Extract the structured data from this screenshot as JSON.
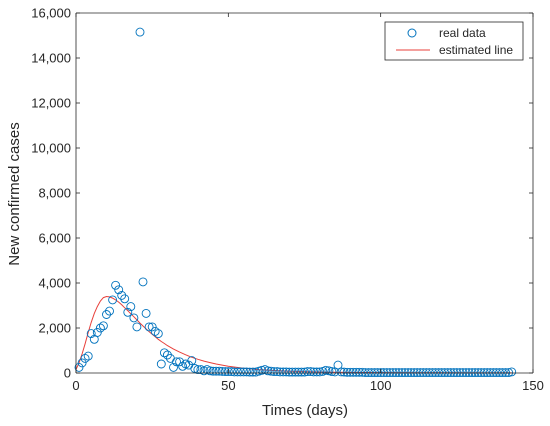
{
  "chart_data": {
    "type": "scatter",
    "xlabel": "Times (days)",
    "ylabel": "New confirmed cases",
    "xlim": [
      0,
      150
    ],
    "ylim": [
      0,
      16000
    ],
    "x_ticks": [
      0,
      50,
      100,
      150
    ],
    "y_ticks": [
      0,
      2000,
      4000,
      6000,
      8000,
      10000,
      12000,
      14000,
      16000
    ],
    "x_tick_labels": [
      "0",
      "50",
      "100",
      "150"
    ],
    "y_tick_labels": [
      "0",
      "2,000",
      "4,000",
      "6,000",
      "8,000",
      "10,000",
      "12,000",
      "14,000",
      "16,000"
    ],
    "grid": false,
    "legend_position": "top-right",
    "series": [
      {
        "name": "real data",
        "kind": "markers",
        "marker": "circle",
        "color": "#0072BD",
        "x": [
          1,
          2,
          3,
          4,
          5,
          6,
          7,
          8,
          9,
          10,
          11,
          12,
          13,
          14,
          15,
          16,
          17,
          18,
          19,
          20,
          21,
          22,
          23,
          24,
          25,
          26,
          27,
          28,
          29,
          30,
          31,
          32,
          33,
          34,
          35,
          36,
          37,
          38,
          39,
          40,
          41,
          42,
          43,
          44,
          45,
          46,
          47,
          48,
          49,
          50,
          51,
          52,
          53,
          54,
          55,
          56,
          57,
          58,
          59,
          60,
          61,
          62,
          63,
          64,
          65,
          66,
          67,
          68,
          69,
          70,
          71,
          72,
          73,
          74,
          75,
          76,
          77,
          78,
          79,
          80,
          81,
          82,
          83,
          84,
          85,
          86,
          87,
          88,
          89,
          90,
          91,
          92,
          93,
          94,
          95,
          96,
          97,
          98,
          99,
          100,
          101,
          102,
          103,
          104,
          105,
          106,
          107,
          108,
          109,
          110,
          111,
          112,
          113,
          114,
          115,
          116,
          117,
          118,
          119,
          120,
          121,
          122,
          123,
          124,
          125,
          126,
          127,
          128,
          129,
          130,
          131,
          132,
          133,
          134,
          135,
          136,
          137,
          138,
          139,
          140,
          141,
          142,
          143
        ],
        "y": [
          250,
          450,
          650,
          750,
          1750,
          1500,
          1800,
          2000,
          2100,
          2600,
          2750,
          3250,
          3900,
          3700,
          3450,
          3300,
          2700,
          2950,
          2450,
          2050,
          15150,
          4050,
          2650,
          2050,
          2050,
          1850,
          1750,
          400,
          900,
          800,
          650,
          250,
          500,
          500,
          300,
          400,
          350,
          550,
          200,
          150,
          150,
          100,
          150,
          100,
          80,
          80,
          80,
          70,
          60,
          60,
          60,
          50,
          50,
          50,
          50,
          50,
          40,
          40,
          40,
          80,
          120,
          150,
          100,
          80,
          60,
          60,
          50,
          50,
          50,
          40,
          40,
          40,
          40,
          40,
          40,
          60,
          60,
          50,
          50,
          50,
          70,
          120,
          100,
          60,
          50,
          350,
          50,
          40,
          30,
          30,
          30,
          30,
          30,
          30,
          20,
          20,
          20,
          20,
          20,
          20,
          20,
          20,
          20,
          20,
          20,
          20,
          20,
          20,
          20,
          20,
          20,
          20,
          20,
          20,
          20,
          20,
          20,
          20,
          20,
          20,
          20,
          20,
          20,
          20,
          20,
          20,
          20,
          20,
          20,
          20,
          20,
          20,
          20,
          20,
          20,
          20,
          20,
          20,
          20,
          20,
          20,
          20,
          50
        ]
      },
      {
        "name": "estimated line",
        "kind": "line",
        "color": "#E8403B",
        "x": [
          0,
          1,
          2,
          3,
          4,
          5,
          6,
          7,
          8,
          9,
          10,
          11,
          12,
          13,
          14,
          15,
          16,
          17,
          18,
          19,
          20,
          21,
          22,
          23,
          24,
          25,
          26,
          27,
          28,
          29,
          30,
          32,
          34,
          36,
          38,
          40,
          42,
          44,
          46,
          48,
          50,
          55,
          60,
          65,
          70,
          75,
          80,
          85,
          90,
          95,
          100,
          110,
          120,
          130,
          143
        ],
        "y": [
          150,
          450,
          850,
          1300,
          1800,
          2250,
          2650,
          2950,
          3200,
          3350,
          3400,
          3380,
          3330,
          3250,
          3150,
          3030,
          2900,
          2770,
          2630,
          2500,
          2360,
          2220,
          2090,
          1960,
          1840,
          1720,
          1610,
          1500,
          1400,
          1310,
          1220,
          1060,
          930,
          810,
          700,
          610,
          530,
          460,
          400,
          350,
          300,
          210,
          150,
          110,
          80,
          60,
          45,
          35,
          28,
          22,
          18,
          12,
          8,
          6,
          4
        ]
      }
    ]
  }
}
